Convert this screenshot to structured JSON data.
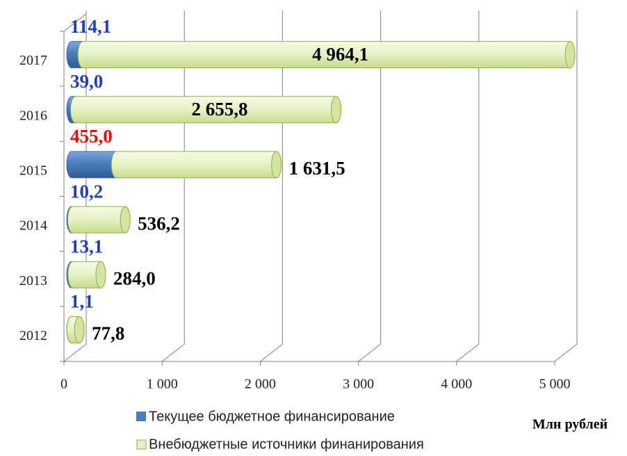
{
  "chart_data": {
    "type": "stacked-barh",
    "categories": [
      "2012",
      "2013",
      "2014",
      "2015",
      "2016",
      "2017"
    ],
    "series": [
      {
        "name": "Текущее бюджетное финансирование",
        "color": "#4a7ebb",
        "values": [
          1.1,
          13.1,
          10.2,
          455.0,
          39.0,
          114.1
        ],
        "value_labels": [
          "1,1",
          "13,1",
          "10,2",
          "455,0",
          "39,0",
          "114,1"
        ],
        "value_label_colors": [
          "#1f3fbf",
          "#1f3fbf",
          "#1f3fbf",
          "#ff0000",
          "#1f3fbf",
          "#1f3fbf"
        ]
      },
      {
        "name": "Внебюджетные источники финанирования",
        "color": "#e6f1c3",
        "values": [
          77.8,
          284.0,
          536.2,
          1631.5,
          2655.8,
          4964.1
        ],
        "value_labels": [
          "77,8",
          "284,0",
          "536,2",
          "1 631,5",
          "2 655,8",
          "4 964,1"
        ],
        "value_label_colors": [
          "#000000",
          "#000000",
          "#000000",
          "#000000",
          "#000000",
          "#000000"
        ]
      }
    ],
    "xlim": [
      0,
      5000
    ],
    "xticks": [
      0,
      {
        "value": 1000,
        "label": "1 000"
      },
      {
        "value": 2000,
        "label": "2 000"
      },
      {
        "value": 3000,
        "label": "3 000"
      },
      {
        "value": 4000,
        "label": "4 000"
      },
      {
        "value": 5000,
        "label": "5 000"
      }
    ],
    "unit_label": "Млн рублей",
    "grid": true
  }
}
